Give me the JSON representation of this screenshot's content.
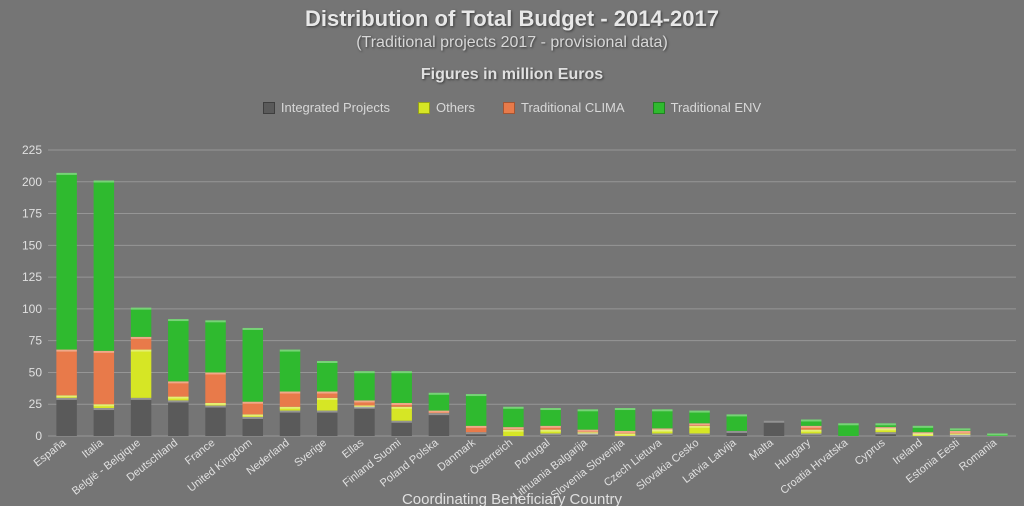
{
  "chart": {
    "type": "stacked-bar",
    "title": "Distribution of Total Budget - 2014-2017",
    "subtitle": "(Traditional projects 2017 - provisional data)",
    "figcaption": "Figures in million Euros",
    "xaxis_title": "Coordinating Beneficiary Country",
    "background_color": "#757575",
    "grid_color": "#969696",
    "text_color": "#e0e0e0",
    "title_fontsize": 22,
    "subtitle_fontsize": 16,
    "label_fontsize": 12,
    "ylim": [
      0,
      225
    ],
    "ytick_step": 25,
    "bar_width": 0.55,
    "legend": [
      {
        "key": "integrated",
        "label": "Integrated Projects",
        "color": "#5a5a5a"
      },
      {
        "key": "others",
        "label": "Others",
        "color": "#d6e625"
      },
      {
        "key": "clima",
        "label": "Traditional CLIMA",
        "color": "#e87a4a"
      },
      {
        "key": "env",
        "label": "Traditional ENV",
        "color": "#2fba2f"
      }
    ],
    "stack_order": [
      "integrated",
      "others",
      "clima",
      "env"
    ],
    "categories": [
      "España",
      "Italia",
      "België - Belgique",
      "Deutschland",
      "France",
      "United Kingdom",
      "Nederland",
      "Sverige",
      "Ellas",
      "Finland Suomi",
      "Poland Polska",
      "Danmark",
      "Österreich",
      "Portugal",
      "Lithuania Balgarija",
      "Slovenia Slovenija",
      "Czech Lietuva",
      "Slovakia Cesko",
      "Latvia Latvija",
      "Malta",
      "Hungary",
      "Croatia Hrvatska",
      "Cyprus",
      "Ireland",
      "Estonia Eesti",
      "Romania"
    ],
    "series": {
      "integrated": [
        30,
        22,
        30,
        28,
        24,
        15,
        20,
        20,
        23,
        12,
        18,
        3,
        0,
        2,
        2,
        0,
        2,
        2,
        4,
        12,
        2,
        0,
        3,
        0,
        1,
        0
      ],
      "others": [
        2,
        3,
        38,
        3,
        2,
        2,
        3,
        10,
        1,
        11,
        0,
        0,
        5,
        3,
        1,
        2,
        3,
        6,
        0,
        0,
        3,
        0,
        3,
        2,
        1,
        0
      ],
      "clima": [
        36,
        42,
        10,
        12,
        24,
        10,
        12,
        5,
        4,
        3,
        2,
        5,
        2,
        3,
        2,
        2,
        1,
        2,
        0,
        0,
        3,
        0,
        1,
        1,
        2,
        0
      ],
      "env": [
        139,
        134,
        23,
        49,
        41,
        58,
        33,
        24,
        23,
        25,
        14,
        25,
        16,
        14,
        16,
        18,
        15,
        10,
        13,
        0,
        5,
        10,
        3,
        5,
        2,
        2
      ]
    }
  }
}
